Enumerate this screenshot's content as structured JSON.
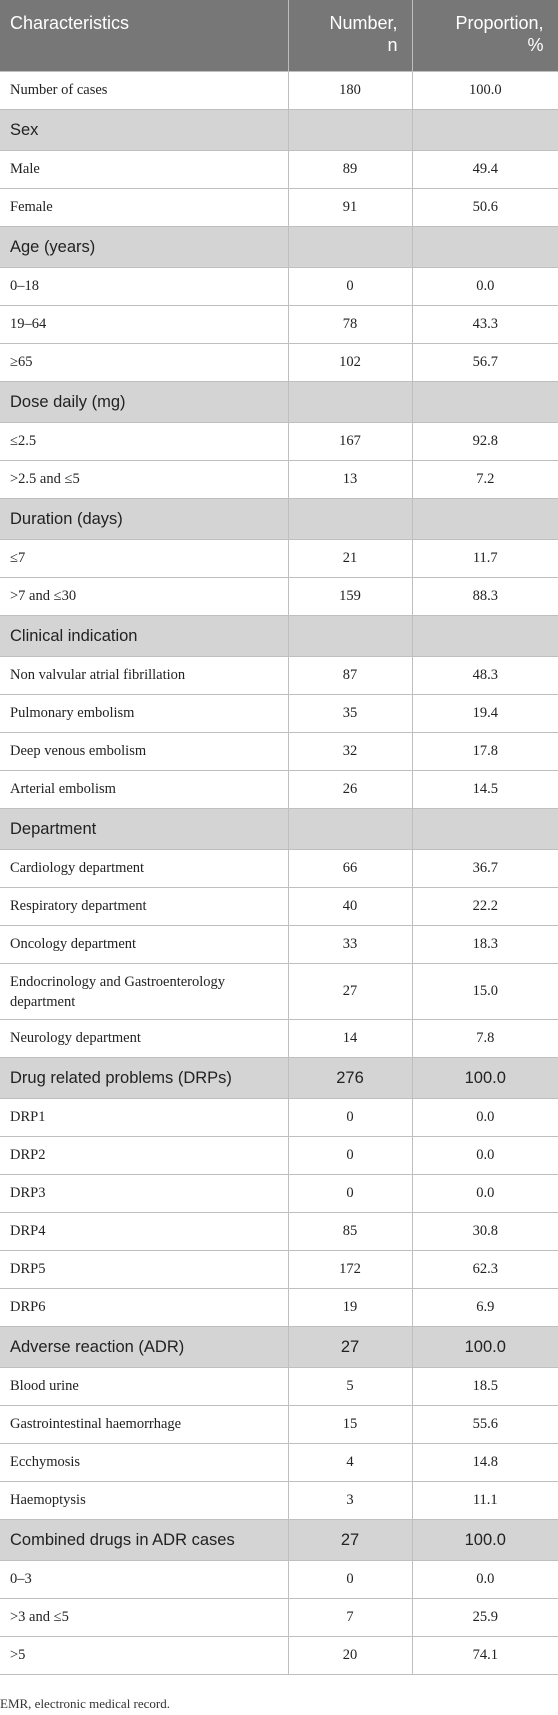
{
  "header": {
    "col1": "Characteristics",
    "col2_line1": "Number,",
    "col2_line2": "n",
    "col3_line1": "Proportion,",
    "col3_line2": "%"
  },
  "rows": [
    {
      "label": "Number of cases",
      "n": "180",
      "p": "100.0"
    },
    {
      "section": "Sex"
    },
    {
      "label": "Male",
      "n": "89",
      "p": "49.4"
    },
    {
      "label": "Female",
      "n": "91",
      "p": "50.6"
    },
    {
      "section": "Age (years)"
    },
    {
      "label": "0–18",
      "n": "0",
      "p": "0.0"
    },
    {
      "label": "19–64",
      "n": "78",
      "p": "43.3"
    },
    {
      "label": "≥65",
      "n": "102",
      "p": "56.7"
    },
    {
      "section": "Dose daily (mg)"
    },
    {
      "label": "≤2.5",
      "n": "167",
      "p": "92.8"
    },
    {
      "label": ">2.5 and ≤5",
      "n": "13",
      "p": "7.2"
    },
    {
      "section": "Duration (days)"
    },
    {
      "label": "≤7",
      "n": "21",
      "p": "11.7"
    },
    {
      "label": ">7 and ≤30",
      "n": "159",
      "p": "88.3"
    },
    {
      "section": "Clinical indication"
    },
    {
      "label": "Non valvular atrial fibrillation",
      "n": "87",
      "p": "48.3"
    },
    {
      "label": "Pulmonary embolism",
      "n": "35",
      "p": "19.4"
    },
    {
      "label": "Deep venous embolism",
      "n": "32",
      "p": "17.8"
    },
    {
      "label": "Arterial embolism",
      "n": "26",
      "p": "14.5"
    },
    {
      "section": "Department"
    },
    {
      "label": "Cardiology department",
      "n": "66",
      "p": "36.7"
    },
    {
      "label": "Respiratory department",
      "n": "40",
      "p": "22.2"
    },
    {
      "label": "Oncology department",
      "n": "33",
      "p": "18.3"
    },
    {
      "label": "Endocrinology and Gastroenterology department",
      "n": "27",
      "p": "15.0",
      "tall": true
    },
    {
      "label": "Neurology department",
      "n": "14",
      "p": "7.8"
    },
    {
      "section": "Drug related problems (DRPs)",
      "n": "276",
      "p": "100.0"
    },
    {
      "label": "DRP1",
      "n": "0",
      "p": "0.0"
    },
    {
      "label": "DRP2",
      "n": "0",
      "p": "0.0"
    },
    {
      "label": "DRP3",
      "n": "0",
      "p": "0.0"
    },
    {
      "label": "DRP4",
      "n": "85",
      "p": "30.8"
    },
    {
      "label": "DRP5",
      "n": "172",
      "p": "62.3"
    },
    {
      "label": "DRP6",
      "n": "19",
      "p": "6.9"
    },
    {
      "section": "Adverse reaction (ADR)",
      "n": "27",
      "p": "100.0"
    },
    {
      "label": "Blood urine",
      "n": "5",
      "p": "18.5"
    },
    {
      "label": "Gastrointestinal haemorrhage",
      "n": "15",
      "p": "55.6"
    },
    {
      "label": "Ecchymosis",
      "n": "4",
      "p": "14.8"
    },
    {
      "label": "Haemoptysis",
      "n": "3",
      "p": "11.1"
    },
    {
      "section": "Combined drugs in ADR cases",
      "n": "27",
      "p": "100.0"
    },
    {
      "label": "0–3",
      "n": "0",
      "p": "0.0"
    },
    {
      "label": ">3 and ≤5",
      "n": "7",
      "p": "25.9"
    },
    {
      "label": ">5",
      "n": "20",
      "p": "74.1"
    }
  ],
  "footnote": "EMR, electronic medical record."
}
